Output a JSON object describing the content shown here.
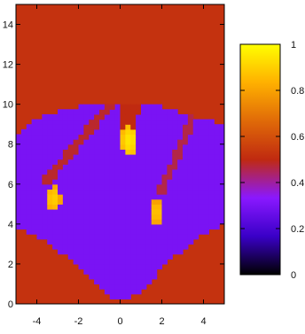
{
  "chart_data": {
    "type": "heatmap",
    "title": "",
    "xlabel": "",
    "ylabel": "",
    "xlim": [
      -5,
      5
    ],
    "ylim": [
      0,
      15
    ],
    "x_ticks": [
      -4,
      -2,
      0,
      2,
      4
    ],
    "y_ticks": [
      0,
      2,
      4,
      6,
      8,
      10,
      12,
      14
    ],
    "colorbar": {
      "range": [
        0,
        1
      ],
      "ticks": [
        0,
        0.2,
        0.4,
        0.6,
        0.8,
        1
      ],
      "colors": [
        "#000000",
        "#3a00c8",
        "#8a18ff",
        "#c02a10",
        "#e06a08",
        "#ffb000",
        "#ffff00"
      ]
    },
    "background_value": 0.52,
    "fan_value": 0.3,
    "fan_region": {
      "apex": [
        0,
        0.1
      ],
      "top_left": [
        -5,
        8.5
      ],
      "top_right": [
        5,
        9
      ],
      "upper_boundary": [
        [
          -5,
          8.5
        ],
        [
          -4,
          9.3
        ],
        [
          -2,
          9.9
        ],
        [
          0,
          10.1
        ],
        [
          1.8,
          9.9
        ],
        [
          3.5,
          9.4
        ],
        [
          5,
          9
        ]
      ],
      "lower_left_boundary": [
        [
          -5,
          3.9
        ],
        [
          -3.5,
          3.1
        ],
        [
          -2,
          1.9
        ],
        [
          -0.7,
          0.6
        ],
        [
          0,
          0.1
        ]
      ],
      "lower_right_boundary": [
        [
          0,
          0.1
        ],
        [
          1,
          0.7
        ],
        [
          2.5,
          2.3
        ],
        [
          4,
          3.5
        ],
        [
          5,
          4.1
        ]
      ]
    },
    "ridges": [
      {
        "x0": 0.3,
        "y0": 10.1,
        "x1": 0.2,
        "y1": 8.8,
        "value": 0.5
      },
      {
        "x0": -0.4,
        "y0": 10.1,
        "x1": -3.5,
        "y1": 6.2,
        "value": 0.48
      },
      {
        "x0": 0.8,
        "y0": 10.1,
        "x1": 0.6,
        "y1": 8.8,
        "value": 0.5
      },
      {
        "x0": 3.5,
        "y0": 9.4,
        "x1": 2.0,
        "y1": 5.7,
        "value": 0.46
      }
    ],
    "hotspots": [
      {
        "x": 0.45,
        "y": 8.2,
        "rx": 0.4,
        "ry": 0.75,
        "value": 0.85
      },
      {
        "x": -3.2,
        "y": 5.3,
        "rx": 0.35,
        "ry": 0.65,
        "value": 0.8
      },
      {
        "x": 1.75,
        "y": 4.6,
        "rx": 0.3,
        "ry": 0.65,
        "value": 0.78
      }
    ]
  }
}
